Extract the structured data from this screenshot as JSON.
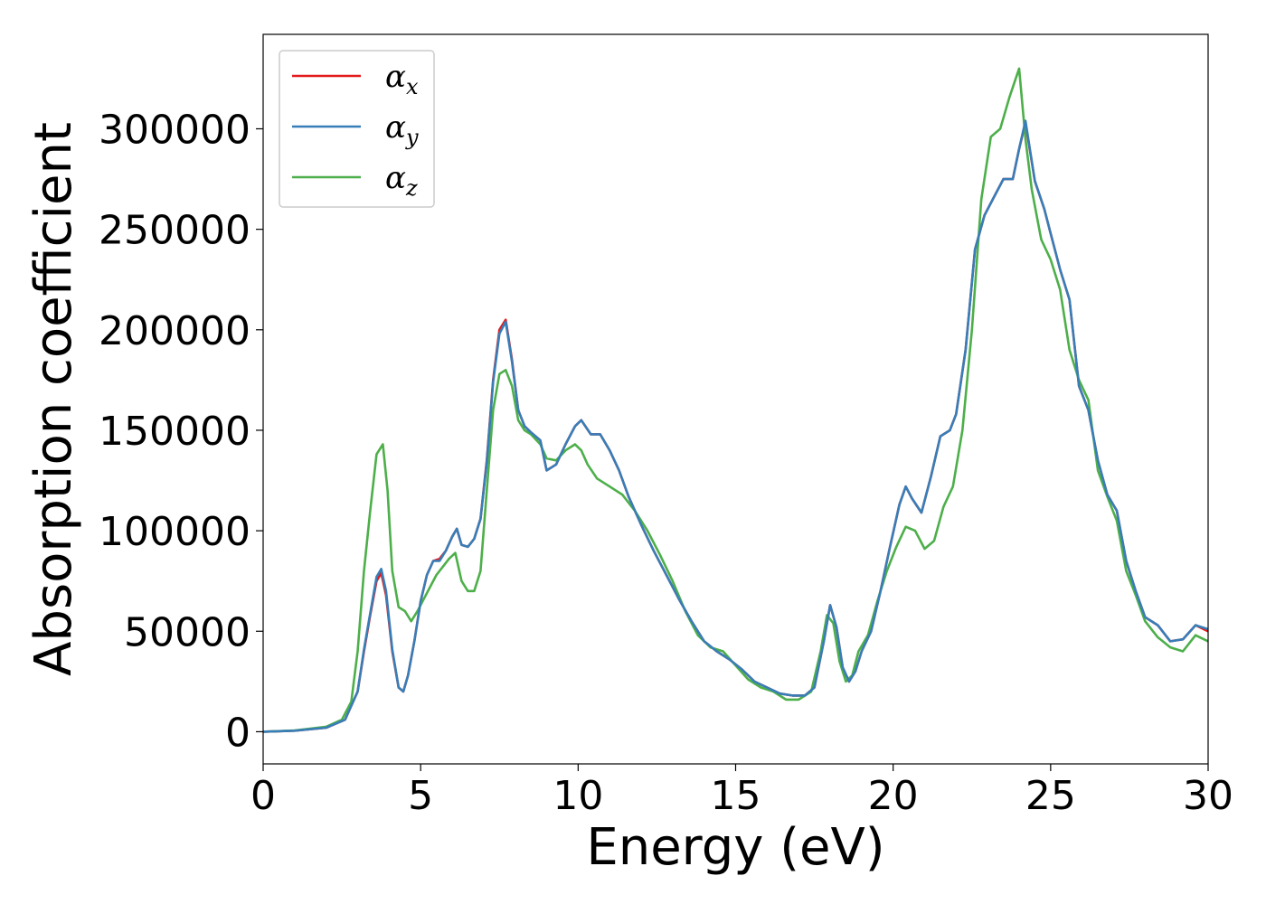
{
  "chart_data": {
    "type": "line",
    "xlabel": "Energy (eV)",
    "ylabel": "Absorption coefficient",
    "xlim": [
      0,
      30
    ],
    "ylim": [
      -16000,
      347000
    ],
    "xticks": [
      0,
      5,
      10,
      15,
      20,
      25,
      30
    ],
    "xtick_labels": [
      "0",
      "5",
      "10",
      "15",
      "20",
      "25",
      "30"
    ],
    "yticks": [
      0,
      50000,
      100000,
      150000,
      200000,
      250000,
      300000
    ],
    "ytick_labels": [
      "0",
      "50000",
      "100000",
      "150000",
      "200000",
      "250000",
      "300000"
    ],
    "grid": false,
    "legend_position": "top-left",
    "series": [
      {
        "name": "α_x",
        "legend_symbol": "α",
        "legend_subscript": "x",
        "color": "#e41a1c",
        "x": [
          0,
          1,
          2,
          2.6,
          3.0,
          3.2,
          3.4,
          3.6,
          3.75,
          3.9,
          4.1,
          4.3,
          4.45,
          4.6,
          4.8,
          5.0,
          5.2,
          5.4,
          5.6,
          5.8,
          6.0,
          6.15,
          6.3,
          6.5,
          6.7,
          6.9,
          7.1,
          7.3,
          7.5,
          7.7,
          7.9,
          8.1,
          8.3,
          8.5,
          8.8,
          9.0,
          9.3,
          9.6,
          9.9,
          10.1,
          10.4,
          10.7,
          11.0,
          11.3,
          11.6,
          12.0,
          12.4,
          12.8,
          13.2,
          13.6,
          14.0,
          14.4,
          14.8,
          15.2,
          15.6,
          16.0,
          16.4,
          16.8,
          17.2,
          17.5,
          17.8,
          18.0,
          18.2,
          18.4,
          18.6,
          18.8,
          19.0,
          19.3,
          19.6,
          19.9,
          20.2,
          20.4,
          20.6,
          20.9,
          21.2,
          21.5,
          21.8,
          22.0,
          22.3,
          22.6,
          22.9,
          23.2,
          23.5,
          23.8,
          24.0,
          24.2,
          24.5,
          24.8,
          25.0,
          25.3,
          25.6,
          25.9,
          26.2,
          26.5,
          26.8,
          27.1,
          27.4,
          27.7,
          28.0,
          28.4,
          28.8,
          29.2,
          29.6,
          30.0
        ],
        "y": [
          0,
          500,
          2000,
          6000,
          20000,
          40000,
          58000,
          75000,
          79000,
          68000,
          40000,
          22000,
          20000,
          28000,
          45000,
          65000,
          78000,
          85000,
          86000,
          90000,
          97000,
          101000,
          93000,
          92000,
          96000,
          106000,
          135000,
          175000,
          200000,
          205000,
          185000,
          160000,
          152000,
          149000,
          145000,
          130000,
          133000,
          143000,
          152000,
          155000,
          148000,
          148000,
          140000,
          130000,
          117000,
          103000,
          90000,
          78000,
          66000,
          55000,
          45000,
          40000,
          36000,
          31000,
          25000,
          22000,
          19000,
          18000,
          18000,
          22000,
          45000,
          63000,
          52000,
          32000,
          25000,
          30000,
          40000,
          50000,
          70000,
          92000,
          113000,
          122000,
          116000,
          109000,
          127000,
          147000,
          150000,
          158000,
          190000,
          240000,
          257000,
          266000,
          275000,
          275000,
          290000,
          303000,
          274000,
          260000,
          248000,
          230000,
          215000,
          172000,
          160000,
          135000,
          118000,
          110000,
          85000,
          70000,
          57000,
          53000,
          45000,
          46000,
          53000,
          50000
        ]
      },
      {
        "name": "α_y",
        "legend_symbol": "α",
        "legend_subscript": "y",
        "color": "#377eb8",
        "x": [
          0,
          1,
          2,
          2.6,
          3.0,
          3.2,
          3.4,
          3.6,
          3.75,
          3.9,
          4.1,
          4.3,
          4.45,
          4.6,
          4.8,
          5.0,
          5.2,
          5.4,
          5.6,
          5.8,
          6.0,
          6.15,
          6.3,
          6.5,
          6.7,
          6.9,
          7.1,
          7.3,
          7.5,
          7.7,
          7.9,
          8.1,
          8.3,
          8.5,
          8.8,
          9.0,
          9.3,
          9.6,
          9.9,
          10.1,
          10.4,
          10.7,
          11.0,
          11.3,
          11.6,
          12.0,
          12.4,
          12.8,
          13.2,
          13.6,
          14.0,
          14.4,
          14.8,
          15.2,
          15.6,
          16.0,
          16.4,
          16.8,
          17.2,
          17.5,
          17.8,
          18.0,
          18.2,
          18.4,
          18.6,
          18.8,
          19.0,
          19.3,
          19.6,
          19.9,
          20.2,
          20.4,
          20.6,
          20.9,
          21.2,
          21.5,
          21.8,
          22.0,
          22.3,
          22.6,
          22.9,
          23.2,
          23.5,
          23.8,
          24.0,
          24.2,
          24.5,
          24.8,
          25.0,
          25.3,
          25.6,
          25.9,
          26.2,
          26.5,
          26.8,
          27.1,
          27.4,
          27.7,
          28.0,
          28.4,
          28.8,
          29.2,
          29.6,
          30.0
        ],
        "y": [
          0,
          500,
          2000,
          6000,
          20000,
          41000,
          59000,
          77000,
          81000,
          70000,
          41000,
          22000,
          20000,
          28000,
          45000,
          65000,
          78000,
          85000,
          85000,
          90000,
          97000,
          101000,
          93000,
          92000,
          96000,
          106000,
          134000,
          174000,
          198000,
          204000,
          184000,
          160000,
          152000,
          149000,
          145000,
          130000,
          133000,
          143000,
          152000,
          155000,
          148000,
          148000,
          140000,
          130000,
          117000,
          103000,
          90000,
          78000,
          66000,
          55000,
          45000,
          40000,
          36000,
          31000,
          25000,
          22000,
          19000,
          18000,
          18000,
          22000,
          45000,
          63000,
          52000,
          32000,
          25000,
          30000,
          40000,
          50000,
          70000,
          92000,
          113000,
          122000,
          116000,
          109000,
          127000,
          147000,
          150000,
          158000,
          190000,
          240000,
          257000,
          266000,
          275000,
          275000,
          290000,
          304000,
          274000,
          260000,
          248000,
          230000,
          215000,
          172000,
          160000,
          135000,
          118000,
          110000,
          85000,
          70000,
          57000,
          53000,
          45000,
          46000,
          53000,
          51000
        ]
      },
      {
        "name": "α_z",
        "legend_symbol": "α",
        "legend_subscript": "z",
        "color": "#4daf4a",
        "x": [
          0,
          1,
          2,
          2.5,
          2.8,
          3.0,
          3.2,
          3.4,
          3.6,
          3.8,
          3.95,
          4.1,
          4.3,
          4.5,
          4.7,
          4.9,
          5.1,
          5.3,
          5.5,
          5.7,
          5.9,
          6.1,
          6.3,
          6.5,
          6.7,
          6.9,
          7.1,
          7.3,
          7.5,
          7.7,
          7.9,
          8.1,
          8.3,
          8.5,
          8.8,
          9.0,
          9.3,
          9.6,
          9.9,
          10.1,
          10.3,
          10.6,
          11.0,
          11.4,
          11.8,
          12.2,
          12.6,
          13.0,
          13.4,
          13.8,
          14.2,
          14.6,
          15.0,
          15.4,
          15.8,
          16.2,
          16.6,
          17.0,
          17.4,
          17.7,
          17.9,
          18.1,
          18.3,
          18.5,
          18.7,
          18.9,
          19.2,
          19.5,
          19.8,
          20.1,
          20.4,
          20.7,
          21.0,
          21.3,
          21.6,
          21.9,
          22.2,
          22.5,
          22.8,
          23.1,
          23.4,
          23.7,
          24.0,
          24.2,
          24.4,
          24.7,
          25.0,
          25.3,
          25.6,
          25.9,
          26.2,
          26.5,
          26.8,
          27.1,
          27.4,
          27.7,
          28.0,
          28.4,
          28.8,
          29.2,
          29.6,
          30.0
        ],
        "y": [
          0,
          600,
          2500,
          6000,
          15000,
          40000,
          80000,
          110000,
          138000,
          143000,
          120000,
          80000,
          62000,
          60000,
          55000,
          60000,
          66000,
          72000,
          78000,
          82000,
          86000,
          89000,
          75000,
          70000,
          70000,
          80000,
          120000,
          160000,
          178000,
          180000,
          172000,
          155000,
          150000,
          148000,
          143000,
          136000,
          135000,
          140000,
          143000,
          140000,
          133000,
          126000,
          122000,
          118000,
          110000,
          100000,
          88000,
          75000,
          60000,
          48000,
          42000,
          40000,
          33000,
          26000,
          22000,
          20000,
          16000,
          16000,
          20000,
          40000,
          58000,
          54000,
          35000,
          25000,
          28000,
          40000,
          48000,
          65000,
          80000,
          92000,
          102000,
          100000,
          91000,
          95000,
          112000,
          122000,
          150000,
          200000,
          265000,
          296000,
          300000,
          316000,
          330000,
          295000,
          270000,
          245000,
          235000,
          220000,
          190000,
          175000,
          165000,
          130000,
          117000,
          105000,
          80000,
          68000,
          55000,
          47000,
          42000,
          40000,
          48000,
          45000
        ]
      }
    ]
  }
}
